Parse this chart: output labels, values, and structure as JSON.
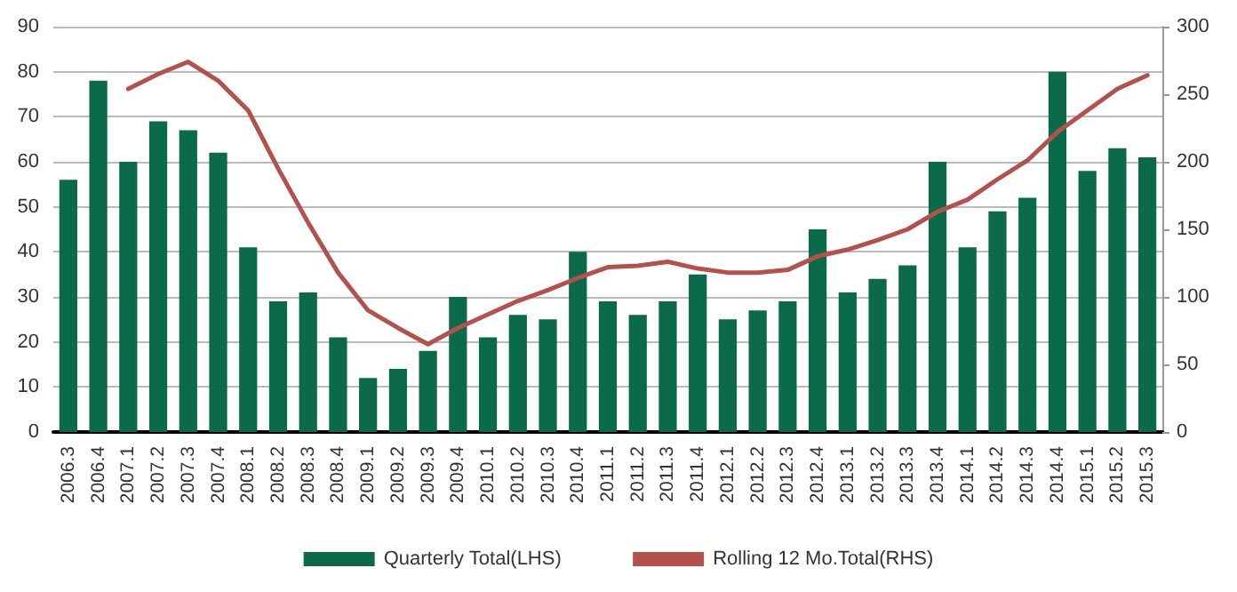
{
  "chart_data": {
    "type": "bar",
    "categories": [
      "2006.3",
      "2006.4",
      "2007.1",
      "2007.2",
      "2007.3",
      "2007.4",
      "2008.1",
      "2008.2",
      "2008.3",
      "2008.4",
      "2009.1",
      "2009.2",
      "2009.3",
      "2009.4",
      "2010.1",
      "2010.2",
      "2010.3",
      "2010.4",
      "2011.1",
      "2011.2",
      "2011.3",
      "2011.4",
      "2012.1",
      "2012.2",
      "2012.3",
      "2012.4",
      "2013.1",
      "2013.2",
      "2013.3",
      "2013.4",
      "2014.1",
      "2014.2",
      "2014.3",
      "2014.4",
      "2015.1",
      "2015.2",
      "2015.3"
    ],
    "series": [
      {
        "name": "Quarterly Total(LHS)",
        "color": "#0b6a4a",
        "values": [
          56,
          78,
          60,
          69,
          67,
          62,
          41,
          29,
          31,
          21,
          12,
          14,
          18,
          30,
          21,
          26,
          25,
          40,
          29,
          26,
          29,
          35,
          25,
          27,
          29,
          45,
          31,
          34,
          37,
          60,
          41,
          49,
          52,
          80,
          58,
          63,
          61
        ]
      },
      {
        "name": "Rolling 12 Mo.Total(RHS)",
        "type": "line",
        "axis": "y2",
        "color": "#b5514d",
        "values": [
          null,
          null,
          254,
          265,
          274,
          260,
          238,
          195,
          155,
          118,
          90,
          77,
          65,
          77,
          87,
          97,
          105,
          114,
          122,
          123,
          126,
          121,
          118,
          118,
          120,
          130,
          135,
          142,
          150,
          163,
          172,
          187,
          201,
          222,
          238,
          254,
          264
        ]
      }
    ],
    "ylim": [
      0,
      90
    ],
    "yticks": [
      0,
      10,
      20,
      30,
      40,
      50,
      60,
      70,
      80,
      90
    ],
    "y2lim": [
      0,
      300
    ],
    "y2ticks": [
      0,
      50,
      100,
      150,
      200,
      250,
      300
    ],
    "grid": "y",
    "legend": "bottom",
    "marker": "none",
    "line_style": "solid"
  }
}
